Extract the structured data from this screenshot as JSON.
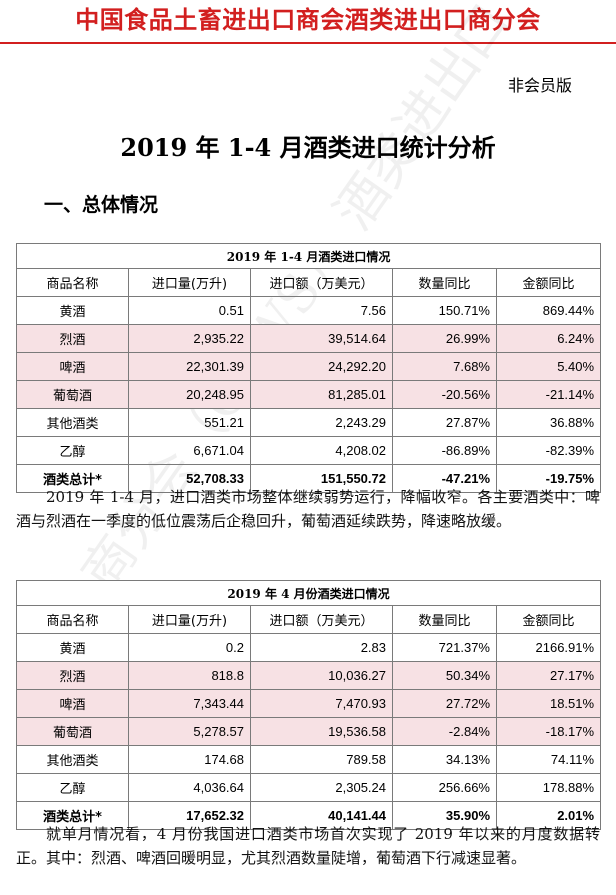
{
  "header": {
    "org_name": "中国食品土畜进出口商会酒类进出口商分会",
    "edition": "非会员版"
  },
  "doc_title": "2019 年 1-4 月酒类进口统计分析",
  "section_heading": "一、总体情况",
  "watermark_text": "商分会（CAWS） 酒类进出口",
  "columns": [
    "商品名称",
    "进口量(万升)",
    "进口额（万美元）",
    "数量同比",
    "金额同比"
  ],
  "table1": {
    "caption": "2019 年 1-4 月酒类进口情况",
    "rows": [
      {
        "name": "黄酒",
        "volume": "0.51",
        "value": "7.56",
        "vol_yoy": "150.71%",
        "val_yoy": "869.44%"
      },
      {
        "name": "烈酒",
        "volume": "2,935.22",
        "value": "39,514.64",
        "vol_yoy": "26.99%",
        "val_yoy": "6.24%"
      },
      {
        "name": "啤酒",
        "volume": "22,301.39",
        "value": "24,292.20",
        "vol_yoy": "7.68%",
        "val_yoy": "5.40%"
      },
      {
        "name": "葡萄酒",
        "volume": "20,248.95",
        "value": "81,285.01",
        "vol_yoy": "-20.56%",
        "val_yoy": "-21.14%"
      },
      {
        "name": "其他酒类",
        "volume": "551.21",
        "value": "2,243.29",
        "vol_yoy": "27.87%",
        "val_yoy": "36.88%"
      },
      {
        "name": "乙醇",
        "volume": "6,671.04",
        "value": "4,208.02",
        "vol_yoy": "-86.89%",
        "val_yoy": "-82.39%"
      },
      {
        "name": "酒类总计*",
        "volume": "52,708.33",
        "value": "151,550.72",
        "vol_yoy": "-47.21%",
        "val_yoy": "-19.75%"
      }
    ]
  },
  "paragraph1": "2019 年 1-4 月，进口酒类市场整体继续弱势运行，降幅收窄。各主要酒类中：啤酒与烈酒在一季度的低位震荡后企稳回升，葡萄酒延续跌势，降速略放缓。",
  "table2": {
    "caption": "2019 年 4 月份酒类进口情况",
    "rows": [
      {
        "name": "黄酒",
        "volume": "0.2",
        "value": "2.83",
        "vol_yoy": "721.37%",
        "val_yoy": "2166.91%"
      },
      {
        "name": "烈酒",
        "volume": "818.8",
        "value": "10,036.27",
        "vol_yoy": "50.34%",
        "val_yoy": "27.17%"
      },
      {
        "name": "啤酒",
        "volume": "7,343.44",
        "value": "7,470.93",
        "vol_yoy": "27.72%",
        "val_yoy": "18.51%"
      },
      {
        "name": "葡萄酒",
        "volume": "5,278.57",
        "value": "19,536.58",
        "vol_yoy": "-2.84%",
        "val_yoy": "-18.17%"
      },
      {
        "name": "其他酒类",
        "volume": "174.68",
        "value": "789.58",
        "vol_yoy": "34.13%",
        "val_yoy": "74.11%"
      },
      {
        "name": "乙醇",
        "volume": "4,036.64",
        "value": "2,305.24",
        "vol_yoy": "256.66%",
        "val_yoy": "178.88%"
      },
      {
        "name": "酒类总计*",
        "volume": "17,652.32",
        "value": "40,141.44",
        "vol_yoy": "35.90%",
        "val_yoy": "2.01%"
      }
    ]
  },
  "paragraph2": "就单月情况看，4 月份我国进口酒类市场首次实现了 2019 年以来的月度数据转正。其中：烈酒、啤酒回暖明显，尤其烈酒数量陡增，葡萄酒下行减速显著。",
  "colors": {
    "header_red": "#d21f1f",
    "row_highlight": "#f7e1e4",
    "border": "#7a7a7a"
  }
}
